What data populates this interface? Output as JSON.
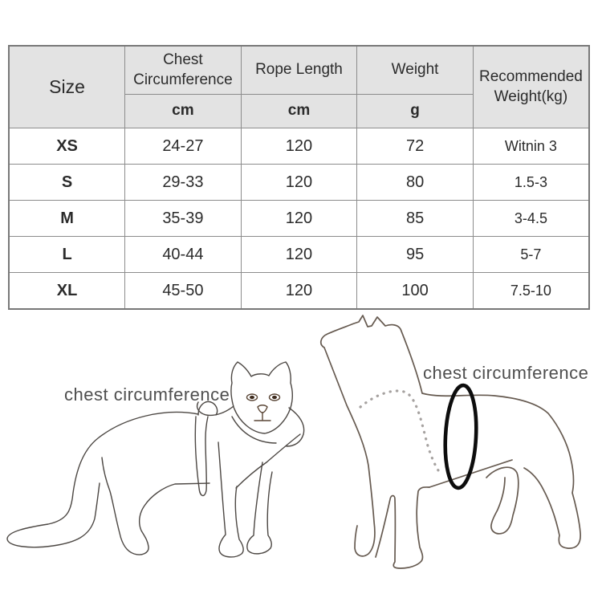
{
  "table": {
    "header": {
      "size": "Size",
      "chest_circumference": "Chest Circumference",
      "rope_length": "Rope Length",
      "weight": "Weight",
      "recommended_weight": "Recommended Weight(kg)",
      "chest_unit": "cm",
      "rope_unit": "cm",
      "weight_unit": "g"
    },
    "rows": [
      {
        "size": "XS",
        "chest": "24-27",
        "rope": "120",
        "weight": "72",
        "recommended": "Witnin 3"
      },
      {
        "size": "S",
        "chest": "29-33",
        "rope": "120",
        "weight": "80",
        "recommended": "1.5-3"
      },
      {
        "size": "M",
        "chest": "35-39",
        "rope": "120",
        "weight": "85",
        "recommended": "3-4.5"
      },
      {
        "size": "L",
        "chest": "40-44",
        "rope": "120",
        "weight": "95",
        "recommended": "5-7"
      },
      {
        "size": "XL",
        "chest": "45-50",
        "rope": "120",
        "weight": "100",
        "recommended": "7.5-10"
      }
    ]
  },
  "illustrations": {
    "cat_label": "chest circumference",
    "dog_label": "chest circumference"
  },
  "colors": {
    "header_bg": "#e3e3e3",
    "table_border": "#787878",
    "cell_border": "#8c8c8c",
    "table_text": "#2b2b2b",
    "label_text": "#4f4f4f",
    "cat_line": "#4c4743",
    "dog_line": "#665a50",
    "chest_marker": "#0d0d0d",
    "dotted_line": "#a6a2a0"
  }
}
